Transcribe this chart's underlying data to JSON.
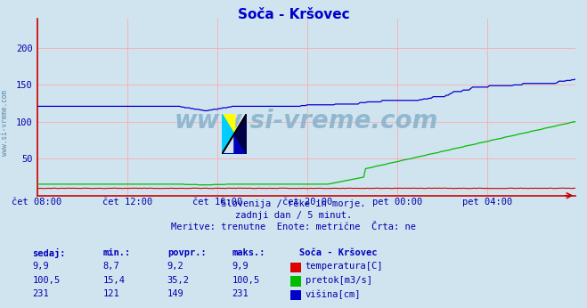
{
  "title": "Soča - Kršovec",
  "bg_color": "#d0e4f0",
  "plot_bg_color": "#d0e4f0",
  "grid_color": "#ffaaaa",
  "ylim": [
    0,
    240
  ],
  "ytick_vals": [
    50,
    100,
    150,
    200
  ],
  "ytick_labels": [
    "50",
    "100",
    "150",
    "200"
  ],
  "xtick_labels": [
    "čet 08:00",
    "čet 12:00",
    "čet 16:00",
    "čet 20:00",
    "pet 00:00",
    "pet 04:00"
  ],
  "n_points": 288,
  "temp_color": "#dd0000",
  "flow_color": "#00bb00",
  "height_color": "#0000cc",
  "temp_line_color": "#cc0000",
  "axis_color": "#cc0000",
  "text_color": "#0000aa",
  "title_color": "#0000cc",
  "watermark": "www.si-vreme.com",
  "watermark_color": "#8ab4cc",
  "sidebar_text": "www.si-vreme.com",
  "bottom_text1": "Slovenija / reke in morje.",
  "bottom_text2": "zadnji dan / 5 minut.",
  "bottom_text3": "Meritve: trenutne  Enote: metrične  Črta: ne",
  "table_title": "Soča - Kršovec",
  "col_headers": [
    "sedaj:",
    "min.:",
    "povpr.:",
    "maks.:"
  ],
  "temp_row": [
    "9,9",
    "8,7",
    "9,2",
    "9,9"
  ],
  "flow_row": [
    "100,5",
    "15,4",
    "35,2",
    "100,5"
  ],
  "height_row": [
    "231",
    "121",
    "149",
    "231"
  ],
  "legend_labels": [
    "temperatura[C]",
    "pretok[m3/s]",
    "višina[cm]"
  ]
}
